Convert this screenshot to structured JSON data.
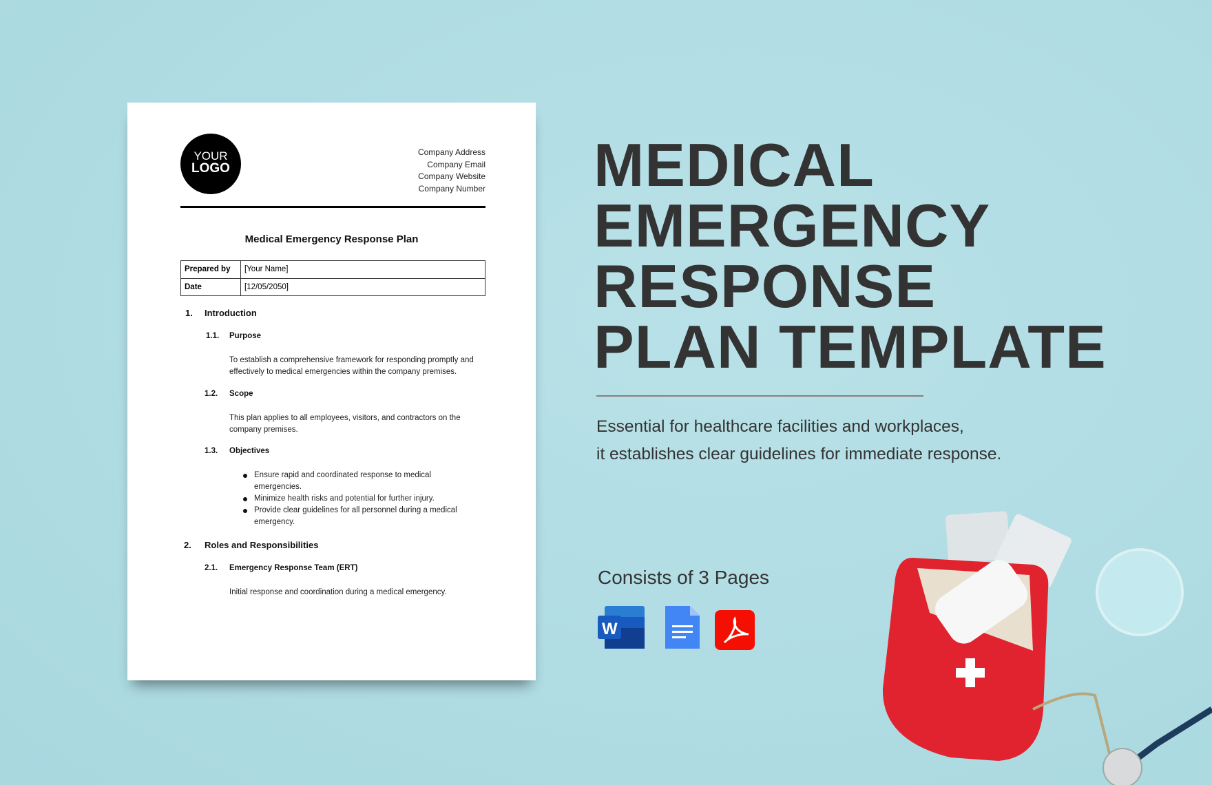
{
  "document": {
    "logo": {
      "line1": "YOUR",
      "line2": "LOGO"
    },
    "company": [
      "Company Address",
      "Company Email",
      "Company Website",
      "Company Number"
    ],
    "title": "Medical Emergency Response Plan",
    "table": [
      {
        "label": "Prepared by",
        "value": "[Your Name]"
      },
      {
        "label": "Date",
        "value": "[12/05/2050]"
      }
    ],
    "s1": {
      "num": "1.",
      "title": "Introduction"
    },
    "s11": {
      "num": "1.1.",
      "title": "Purpose",
      "text": "To establish a comprehensive framework for responding promptly and effectively to medical emergencies within the company premises."
    },
    "s12": {
      "num": "1.2.",
      "title": "Scope",
      "text": "This plan applies to all employees, visitors, and contractors on the company premises."
    },
    "s13": {
      "num": "1.3.",
      "title": "Objectives",
      "bullets": [
        "Ensure rapid and coordinated response to medical emergencies.",
        "Minimize health risks and potential for further injury.",
        "Provide clear guidelines for all personnel during a medical emergency."
      ]
    },
    "s2": {
      "num": "2.",
      "title": "Roles and Responsibilities"
    },
    "s21": {
      "num": "2.1.",
      "title": "Emergency Response Team (ERT)",
      "text": "Initial response and coordination during a medical emergency."
    }
  },
  "promo": {
    "title": [
      "MEDICAL",
      "EMERGENCY",
      "RESPONSE",
      "PLAN TEMPLATE"
    ],
    "subtitle": [
      "Essential for healthcare facilities and workplaces,",
      "it establishes clear guidelines for immediate response."
    ],
    "pages": "Consists of  3 Pages",
    "formats": [
      "word-icon",
      "google-docs-icon",
      "pdf-icon"
    ]
  },
  "colors": {
    "background": "#b3dee5",
    "word": "#185abd",
    "docs": "#4285f4",
    "pdf": "#f40f02",
    "bag": "#e0232e"
  }
}
